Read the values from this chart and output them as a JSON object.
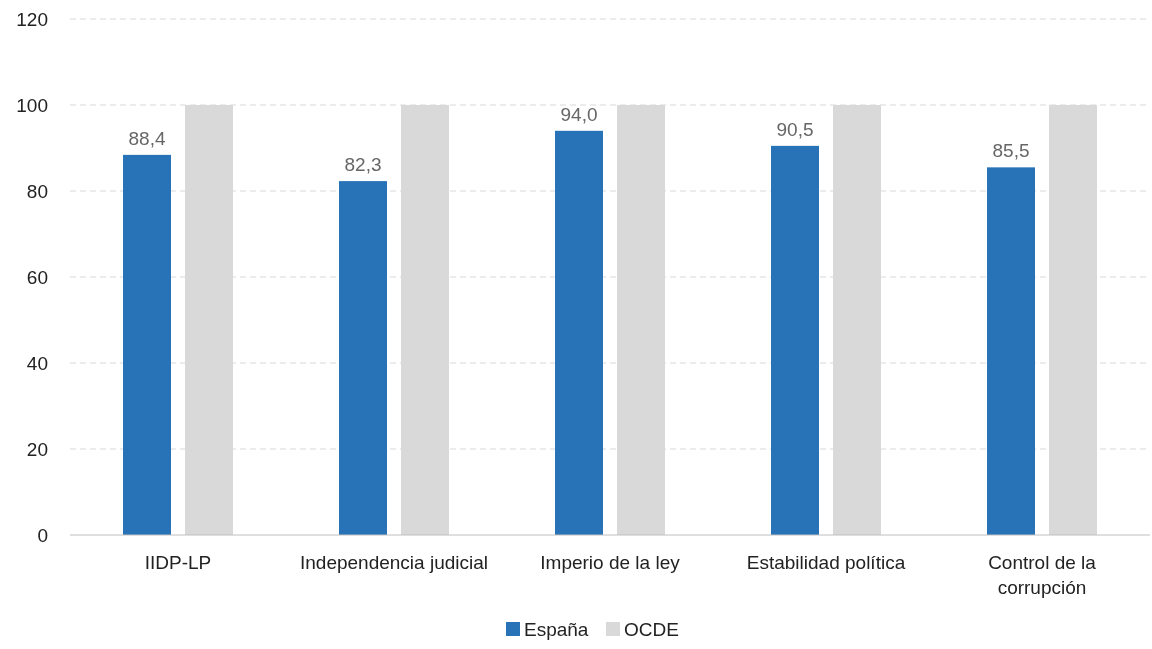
{
  "chart_data": {
    "type": "bar",
    "categories": [
      "IIDP-LP",
      "Independencia judicial",
      "Imperio de la ley",
      "Estabilidad política",
      "Control de la corrupción"
    ],
    "series": [
      {
        "name": "España",
        "color": "#2872b8",
        "values": [
          88.4,
          82.3,
          94.0,
          90.5,
          85.5
        ],
        "value_labels": [
          "88,4",
          "82,3",
          "94,0",
          "90,5",
          "85,5"
        ]
      },
      {
        "name": "OCDE",
        "color": "#d9d9d9",
        "values": [
          100,
          100,
          100,
          100,
          100
        ]
      }
    ],
    "ylim": [
      0,
      120
    ],
    "yticks": [
      0,
      20,
      40,
      60,
      80,
      100,
      120
    ],
    "grid": "y",
    "legend": "bottom"
  }
}
